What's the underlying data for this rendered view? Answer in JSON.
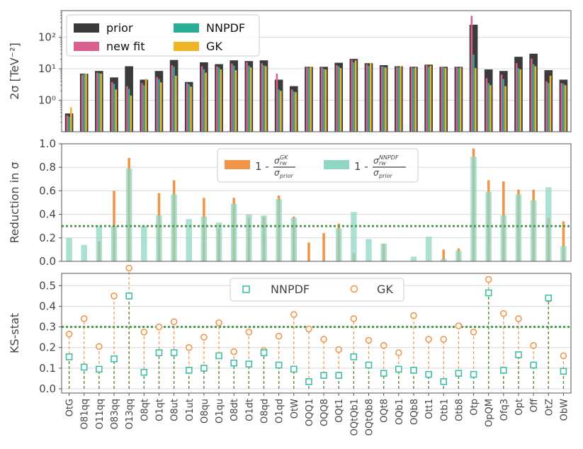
{
  "chart_data": [
    {
      "type": "bar",
      "panel": "top",
      "yscale": "log",
      "ylabel": "2σ [TeV⁻²]",
      "ylim": [
        0.1,
        700
      ],
      "yticks": [
        {
          "v": 1,
          "label": "10⁰"
        },
        {
          "v": 10,
          "label": "10¹"
        },
        {
          "v": 100,
          "label": "10²"
        }
      ],
      "categories": [
        "OtG",
        "O81qq",
        "O11qq",
        "O83qq",
        "O13qq",
        "O8qt",
        "O1qt",
        "O8ut",
        "O1ut",
        "O8qu",
        "O1qu",
        "O8dt",
        "O1dt",
        "O8qd",
        "O1qd",
        "OtW",
        "OQQ1",
        "OQQ8",
        "OQt1",
        "OQtQb1",
        "OQtQb8",
        "OQt8",
        "OQb1",
        "OQb8",
        "Ott1",
        "Otb1",
        "Otb8",
        "Otp",
        "OpQM",
        "Ofq3",
        "Opt",
        "Off",
        "OtZ",
        "ObW"
      ],
      "legend": "top-left",
      "series": [
        {
          "name": "prior",
          "color": "#3b3b3b",
          "values": [
            0.38,
            7,
            8.5,
            5.3,
            12,
            4.5,
            8.5,
            19,
            3.8,
            16,
            14,
            18.5,
            17.5,
            18.5,
            4.5,
            2.8,
            11.5,
            11.5,
            15.5,
            20.5,
            15,
            13,
            12,
            11.5,
            13.5,
            11.5,
            11.5,
            250,
            9.5,
            8.5,
            24,
            30,
            9,
            4.5
          ]
        },
        {
          "name": "new fit",
          "color": "#d9608f",
          "values": [
            0.33,
            6.5,
            7.5,
            3.8,
            2.8,
            3.5,
            5.5,
            13,
            3.5,
            12,
            12,
            14.5,
            16,
            15,
            7,
            2.2,
            11,
            11,
            13,
            19,
            14,
            12,
            11.5,
            11,
            13,
            11.5,
            11,
            480,
            5,
            6.5,
            15,
            21,
            4,
            3.5
          ]
        },
        {
          "name": "NNPDF",
          "color": "#2aac95",
          "values": [
            0.3,
            6.8,
            7.2,
            3.3,
            2.3,
            3,
            4.7,
            11.5,
            3.2,
            9.5,
            11,
            12.5,
            12.5,
            13,
            2.2,
            1.9,
            10.5,
            10,
            12,
            16,
            12.5,
            11.5,
            11,
            10.5,
            11.5,
            11,
            10.5,
            28,
            3.5,
            4.7,
            10.5,
            14,
            3.5,
            3.3
          ]
        },
        {
          "name": "GK",
          "color": "#f0b429",
          "values": [
            0.6,
            7,
            7,
            2.2,
            1.4,
            4.8,
            3.7,
            6,
            2.7,
            7.5,
            9.5,
            9,
            11,
            12,
            2,
            1.8,
            11.5,
            9.5,
            10.5,
            18.5,
            15.5,
            11,
            12,
            11,
            12.5,
            10.5,
            11,
            10.5,
            3,
            2.8,
            9.5,
            12,
            6,
            3
          ]
        }
      ]
    },
    {
      "type": "bar",
      "panel": "middle",
      "ylabel": "Reduction in σ",
      "ylim": [
        0,
        1.0
      ],
      "yticks": [
        "0.0",
        "0.2",
        "0.4",
        "0.6",
        "0.8",
        "1.0"
      ],
      "reference_line": 0.3,
      "legend": "top-center",
      "series": [
        {
          "name": "1 - σ_rw^GK / σ_prior",
          "color": "#f0964a",
          "values": [
            0,
            0,
            0.17,
            0.6,
            0.88,
            0,
            0.58,
            0.69,
            0,
            0.54,
            0.28,
            0.54,
            0.37,
            0.38,
            0.56,
            0.38,
            0.16,
            0.24,
            0.32,
            0.07,
            0,
            0.15,
            0,
            0,
            0,
            0.1,
            0.11,
            0.96,
            0.69,
            0.68,
            0.61,
            0.61,
            0.37,
            0.34
          ]
        },
        {
          "name": "1 - σ_rw^NNPDF / σ_prior",
          "color": "#8fd6c4",
          "values": [
            0.2,
            0.14,
            0.3,
            0.3,
            0.79,
            0.3,
            0.39,
            0.57,
            0.36,
            0.38,
            0.33,
            0.49,
            0.4,
            0.39,
            0.53,
            0.37,
            0,
            0,
            0.28,
            0.42,
            0.19,
            0.15,
            0,
            0.04,
            0.21,
            0.02,
            0.09,
            0.89,
            0.59,
            0.39,
            0.57,
            0.52,
            0.63,
            0.13
          ]
        }
      ]
    },
    {
      "type": "scatter",
      "panel": "bottom",
      "ylabel": "KS-stat",
      "ylim": [
        0,
        0.58
      ],
      "yticks": [
        "0.0",
        "0.1",
        "0.2",
        "0.3",
        "0.4",
        "0.5"
      ],
      "reference_line": 0.3,
      "legend": "top-center",
      "series": [
        {
          "name": "NNPDF",
          "color": "#3fbfa5",
          "marker": "square",
          "values": [
            0.155,
            0.105,
            0.095,
            0.145,
            0.45,
            0.08,
            0.175,
            0.175,
            0.09,
            0.1,
            0.16,
            0.125,
            0.12,
            0.175,
            0.115,
            0.095,
            0.035,
            0.065,
            0.065,
            0.155,
            0.115,
            0.075,
            0.095,
            0.09,
            0.07,
            0.035,
            0.075,
            0.07,
            0.465,
            0.09,
            0.165,
            0.115,
            0.44,
            0.085
          ]
        },
        {
          "name": "GK",
          "color": "#f0964a",
          "marker": "circle",
          "values": [
            0.265,
            0.34,
            0.205,
            0.45,
            0.585,
            0.275,
            0.3,
            0.325,
            0.2,
            0.25,
            0.32,
            0.18,
            0.275,
            0.185,
            0.255,
            0.36,
            0.29,
            0.24,
            0.19,
            0.34,
            0.235,
            0.21,
            0.175,
            0.355,
            0.24,
            0.24,
            0.305,
            0.275,
            0.53,
            0.365,
            0.34,
            0.21,
            0.435,
            0.16
          ]
        }
      ]
    }
  ]
}
